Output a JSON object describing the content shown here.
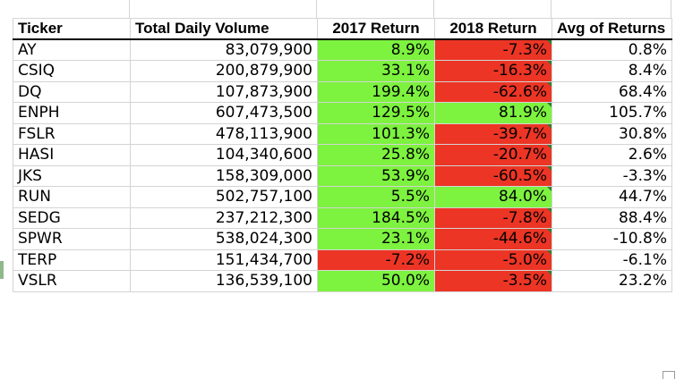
{
  "headers": {
    "ticker": "Ticker",
    "volume": "Total Daily Volume",
    "r2017": "2017 Return",
    "r2018": "2018 Return",
    "avg": "Avg of Returns"
  },
  "colors": {
    "positive": "#7df23f",
    "negative": "#ec3525",
    "grid": "#d4d4d4",
    "header_rule": "#000000"
  },
  "rows": [
    {
      "ticker": "AY",
      "volume": "83,079,900",
      "r2017": "8.9%",
      "r2018": "-7.3%",
      "avg": "0.8%",
      "r2017_sign": "pos",
      "r2018_sign": "neg"
    },
    {
      "ticker": "CSIQ",
      "volume": "200,879,900",
      "r2017": "33.1%",
      "r2018": "-16.3%",
      "avg": "8.4%",
      "r2017_sign": "pos",
      "r2018_sign": "neg"
    },
    {
      "ticker": "DQ",
      "volume": "107,873,900",
      "r2017": "199.4%",
      "r2018": "-62.6%",
      "avg": "68.4%",
      "r2017_sign": "pos",
      "r2018_sign": "neg"
    },
    {
      "ticker": "ENPH",
      "volume": "607,473,500",
      "r2017": "129.5%",
      "r2018": "81.9%",
      "avg": "105.7%",
      "r2017_sign": "pos",
      "r2018_sign": "pos"
    },
    {
      "ticker": "FSLR",
      "volume": "478,113,900",
      "r2017": "101.3%",
      "r2018": "-39.7%",
      "avg": "30.8%",
      "r2017_sign": "pos",
      "r2018_sign": "neg"
    },
    {
      "ticker": "HASI",
      "volume": "104,340,600",
      "r2017": "25.8%",
      "r2018": "-20.7%",
      "avg": "2.6%",
      "r2017_sign": "pos",
      "r2018_sign": "neg"
    },
    {
      "ticker": "JKS",
      "volume": "158,309,000",
      "r2017": "53.9%",
      "r2018": "-60.5%",
      "avg": "-3.3%",
      "r2017_sign": "pos",
      "r2018_sign": "neg"
    },
    {
      "ticker": "RUN",
      "volume": "502,757,100",
      "r2017": "5.5%",
      "r2018": "84.0%",
      "avg": "44.7%",
      "r2017_sign": "pos",
      "r2018_sign": "pos"
    },
    {
      "ticker": "SEDG",
      "volume": "237,212,300",
      "r2017": "184.5%",
      "r2018": "-7.8%",
      "avg": "88.4%",
      "r2017_sign": "pos",
      "r2018_sign": "neg"
    },
    {
      "ticker": "SPWR",
      "volume": "538,024,300",
      "r2017": "23.1%",
      "r2018": "-44.6%",
      "avg": "-10.8%",
      "r2017_sign": "pos",
      "r2018_sign": "neg"
    },
    {
      "ticker": "TERP",
      "volume": "151,434,700",
      "r2017": "-7.2%",
      "r2018": "-5.0%",
      "avg": "-6.1%",
      "r2017_sign": "neg",
      "r2018_sign": "neg"
    },
    {
      "ticker": "VSLR",
      "volume": "136,539,100",
      "r2017": "50.0%",
      "r2018": "-3.5%",
      "avg": "23.2%",
      "r2017_sign": "pos",
      "r2018_sign": "neg"
    }
  ]
}
